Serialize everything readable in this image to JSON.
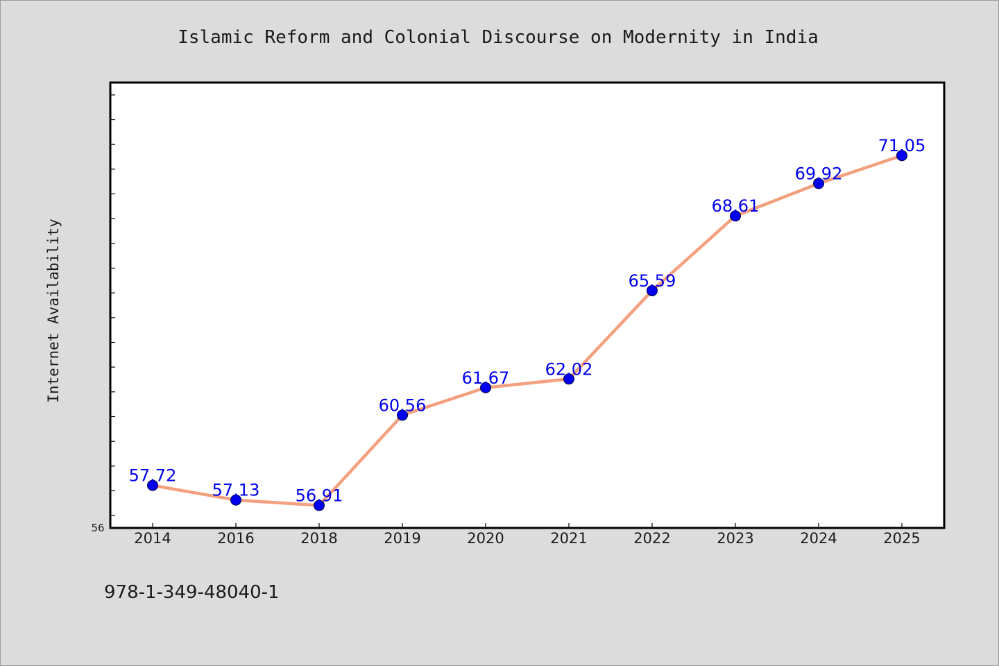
{
  "chart_data": {
    "type": "line",
    "title": "Islamic Reform and Colonial Discourse on Modernity in India",
    "xlabel": "",
    "ylabel": "Internet Availability",
    "categories": [
      "2014",
      "2016",
      "2018",
      "2019",
      "2020",
      "2021",
      "2022",
      "2023",
      "2024",
      "2025"
    ],
    "series": [
      {
        "values": [
          57.72,
          57.13,
          56.91,
          60.56,
          61.67,
          62.02,
          65.59,
          68.61,
          69.92,
          71.05
        ],
        "labels": [
          "57.72",
          "57.13",
          "56.91",
          "60.56",
          "61.67",
          "62.02",
          "65.59",
          "68.61",
          "69.92",
          "71.05"
        ],
        "line_color": "#f4a07e",
        "marker_color": "#0000ee",
        "label_color": "#0000ee"
      }
    ],
    "ylim": [
      56,
      74
    ],
    "y_tick_labels": [
      "56"
    ],
    "grid": false,
    "legend": "none"
  },
  "footer": {
    "text": "978-1-349-48040-1"
  },
  "colors": {
    "background": "#dcdcdc",
    "plot_background": "#ffffff",
    "axis": "#000000"
  }
}
